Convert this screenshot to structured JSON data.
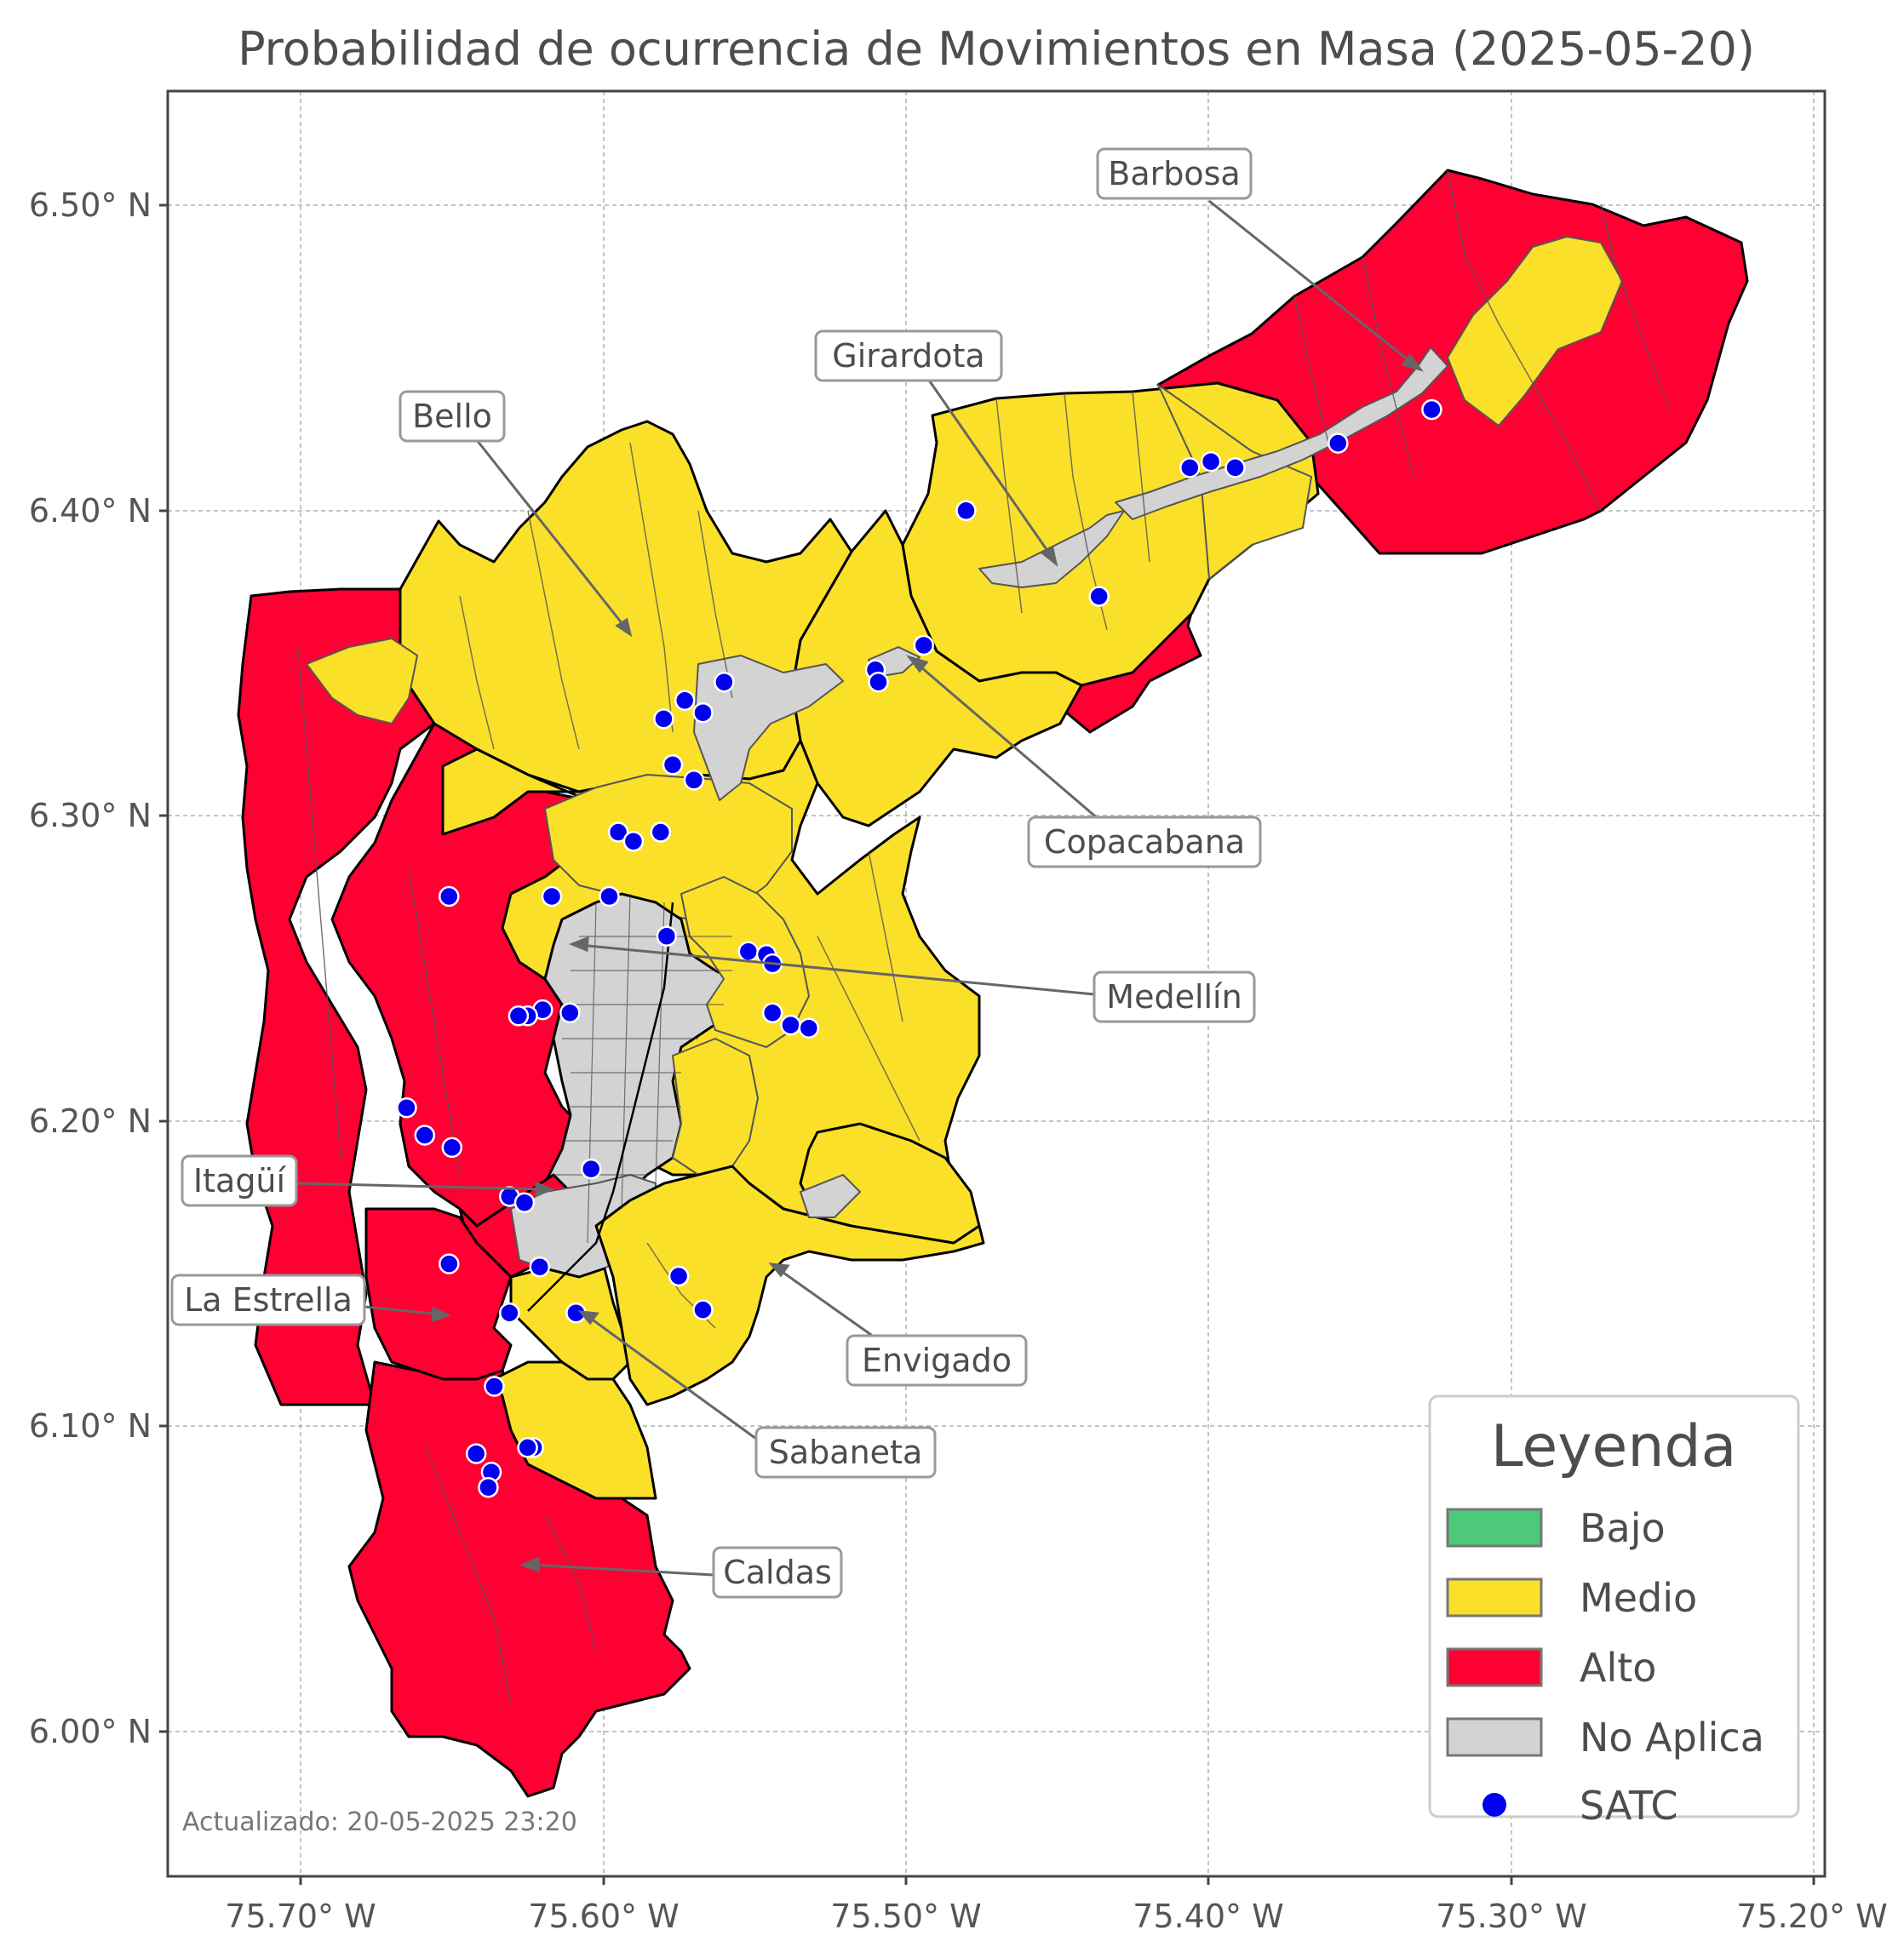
{
  "title": "Probabilidad de ocurrencia de Movimientos en Masa (2025-05-20)",
  "axes": {
    "x_ticks": [
      "75.70° W",
      "75.60° W",
      "75.50° W",
      "75.40° W",
      "75.30° W",
      "75.20° W"
    ],
    "y_ticks": [
      "6.50° N",
      "6.40° N",
      "6.30° N",
      "6.20° N",
      "6.10° N",
      "6.00° N"
    ],
    "x_range": [
      -75.745,
      -75.197
    ],
    "y_range": [
      5.953,
      6.536
    ],
    "grid": true
  },
  "municipalities": [
    {
      "name": "Barbosa",
      "level": "Alto / Medio"
    },
    {
      "name": "Girardota",
      "level": "Medio"
    },
    {
      "name": "Bello",
      "level": "Medio"
    },
    {
      "name": "Copacabana",
      "level": "Medio"
    },
    {
      "name": "Medellín",
      "level": "Medio / Alto / No Aplica"
    },
    {
      "name": "Itagüí",
      "level": "Alto / No Aplica"
    },
    {
      "name": "La Estrella",
      "level": "Alto"
    },
    {
      "name": "Envigado",
      "level": "Medio"
    },
    {
      "name": "Sabaneta",
      "level": "Medio"
    },
    {
      "name": "Caldas",
      "level": "Alto / Medio"
    }
  ],
  "legend": {
    "title": "Leyenda",
    "placement": "bottom-right",
    "items": [
      {
        "label": "Bajo",
        "color": "#4cc97a"
      },
      {
        "label": "Medio",
        "color": "#fbe02a"
      },
      {
        "label": "Alto",
        "color": "#ff0033"
      },
      {
        "label": "No Aplica",
        "color": "#d3d3d3"
      },
      {
        "label": "SATC",
        "color": "#0000ee",
        "symbol": "point"
      }
    ]
  },
  "satc_stations": [
    [
      -75.327,
      6.432
    ],
    [
      -75.358,
      6.421
    ],
    [
      -75.392,
      6.413
    ],
    [
      -75.4,
      6.415
    ],
    [
      -75.407,
      6.413
    ],
    [
      -75.481,
      6.399
    ],
    [
      -75.437,
      6.371
    ],
    [
      -75.495,
      6.355
    ],
    [
      -75.511,
      6.347
    ],
    [
      -75.51,
      6.343
    ],
    [
      -75.561,
      6.343
    ],
    [
      -75.568,
      6.333
    ],
    [
      -75.574,
      6.337
    ],
    [
      -75.581,
      6.331
    ],
    [
      -75.578,
      6.316
    ],
    [
      -75.571,
      6.311
    ],
    [
      -75.596,
      6.294
    ],
    [
      -75.591,
      6.291
    ],
    [
      -75.582,
      6.294
    ],
    [
      -75.599,
      6.273
    ],
    [
      -75.618,
      6.273
    ],
    [
      -75.652,
      6.273
    ],
    [
      -75.58,
      6.26
    ],
    [
      -75.553,
      6.255
    ],
    [
      -75.547,
      6.254
    ],
    [
      -75.545,
      6.251
    ],
    [
      -75.545,
      6.235
    ],
    [
      -75.539,
      6.231
    ],
    [
      -75.533,
      6.23
    ],
    [
      -75.612,
      6.235
    ],
    [
      -75.621,
      6.236
    ],
    [
      -75.626,
      6.234
    ],
    [
      -75.629,
      6.234
    ],
    [
      -75.666,
      6.204
    ],
    [
      -75.66,
      6.195
    ],
    [
      -75.651,
      6.191
    ],
    [
      -75.605,
      6.184
    ],
    [
      -75.632,
      6.175
    ],
    [
      -75.627,
      6.173
    ],
    [
      -75.652,
      6.153
    ],
    [
      -75.622,
      6.152
    ],
    [
      -75.576,
      6.149
    ],
    [
      -75.568,
      6.138
    ],
    [
      -75.61,
      6.137
    ],
    [
      -75.632,
      6.137
    ],
    [
      -75.637,
      6.113
    ],
    [
      -75.624,
      6.093
    ],
    [
      -75.626,
      6.093
    ],
    [
      -75.643,
      6.091
    ],
    [
      -75.638,
      6.085
    ],
    [
      -75.639,
      6.08
    ]
  ],
  "satc_color": "#0000ee",
  "footer": "Actualizado: 20-05-2025 23:20"
}
